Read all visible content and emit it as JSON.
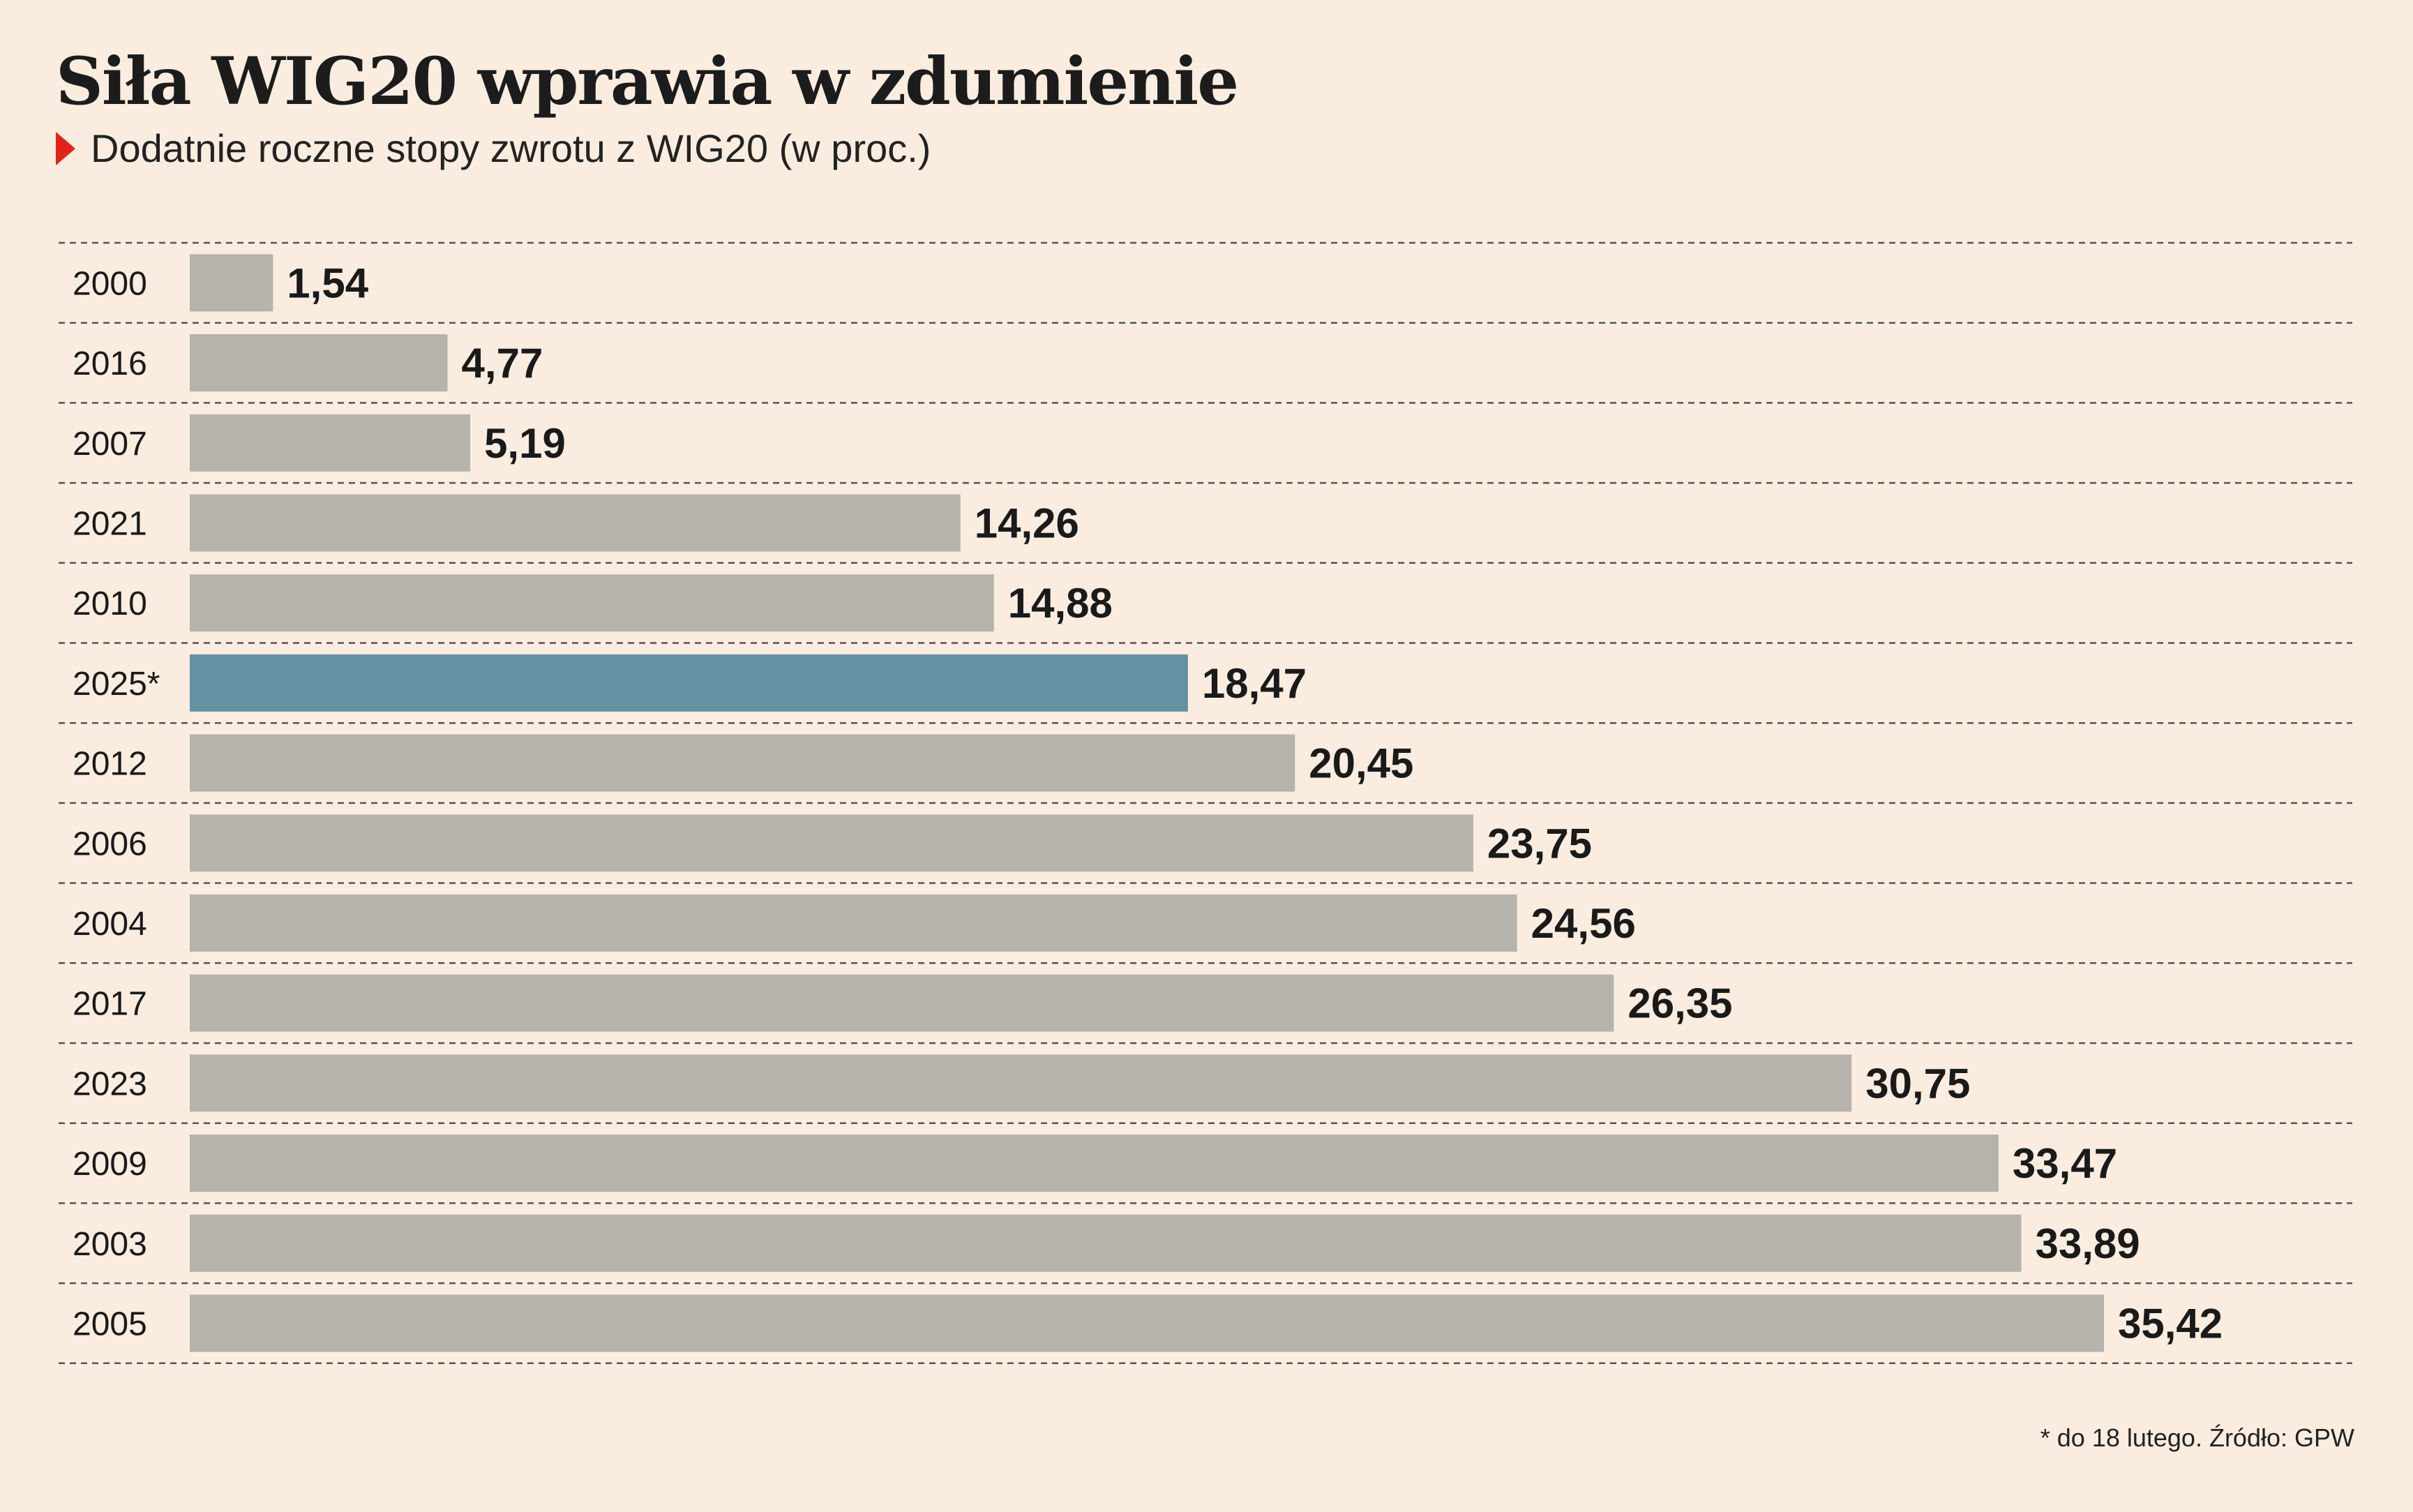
{
  "title": "Siła WIG20 wprawia w zdumienie",
  "subtitle": "Dodatnie roczne stopy zwrotu z WIG20 (w proc.)",
  "footnote": "* do 18 lutego. Źródło: GPW",
  "colors": {
    "background": "#faede0",
    "bar": "#b5b3ab",
    "highlight": "#6491a3",
    "gridline": "#555555",
    "marker": "#e2231a"
  },
  "chart_data": {
    "type": "bar",
    "orientation": "horizontal",
    "categories": [
      "2000",
      "2016",
      "2007",
      "2021",
      "2010",
      "2025*",
      "2012",
      "2006",
      "2004",
      "2017",
      "2023",
      "2009",
      "2003",
      "2005"
    ],
    "values": [
      1.54,
      4.77,
      5.19,
      14.26,
      14.88,
      18.47,
      20.45,
      23.75,
      24.56,
      26.35,
      30.75,
      33.47,
      33.89,
      35.42
    ],
    "value_labels": [
      "1,54",
      "4,77",
      "5,19",
      "14,26",
      "14,88",
      "18,47",
      "20,45",
      "23,75",
      "24,56",
      "26,35",
      "30,75",
      "33,47",
      "33,89",
      "35,42"
    ],
    "highlight_category": "2025*",
    "title": "Siła WIG20 wprawia w zdumienie",
    "xlabel": "",
    "ylabel": "",
    "xlim": [
      0,
      35.42
    ],
    "grid": "dashed row separators",
    "legend": "none"
  }
}
